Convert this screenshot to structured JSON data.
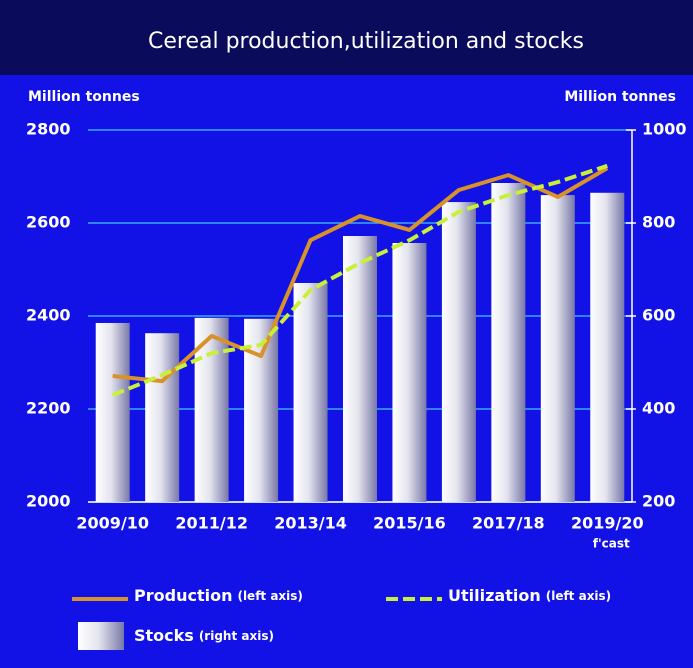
{
  "chart_data": {
    "type": "bar_line_combo",
    "title": "Cereal production,utilization and stocks",
    "y_label": "Million tonnes",
    "y2_label": "Million tonnes",
    "categories": [
      "2009/10",
      null,
      "2011/12",
      null,
      "2013/14",
      null,
      "2015/16",
      null,
      "2017/18",
      null,
      "2019/20"
    ],
    "forecast_note": "f'cast",
    "ylim": [
      2000,
      2800
    ],
    "yticks": [
      2000,
      2200,
      2400,
      2600,
      2800
    ],
    "y2lim": [
      200,
      1000
    ],
    "y2ticks": [
      200,
      400,
      600,
      800,
      1000
    ],
    "grid": true,
    "series": [
      {
        "name": "Production",
        "legend_note": "(left axis)",
        "type": "line",
        "axis": "y",
        "color": "#d9922a",
        "values": [
          2271,
          2260,
          2357,
          2314,
          2563,
          2615,
          2585,
          2671,
          2703,
          2656,
          2718
        ]
      },
      {
        "name": "Utilization",
        "legend_note": "(left axis)",
        "type": "dashed_line",
        "axis": "y",
        "color": "#c8f03a",
        "values": [
          2230,
          2273,
          2320,
          2338,
          2456,
          2514,
          2563,
          2624,
          2660,
          2688,
          2723
        ]
      },
      {
        "name": "Stocks",
        "legend_note": "(right axis)",
        "type": "bar",
        "axis": "y2",
        "color": "#d8d8e8",
        "values": [
          585,
          563,
          596,
          594,
          671,
          772,
          757,
          845,
          886,
          860,
          865
        ]
      }
    ]
  }
}
